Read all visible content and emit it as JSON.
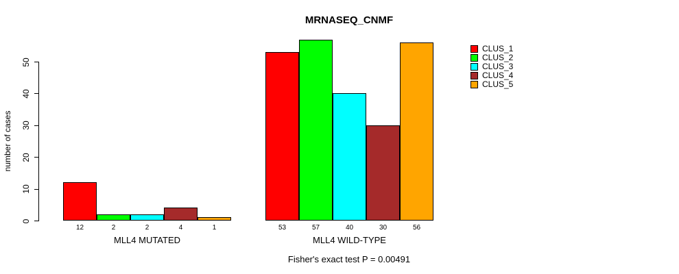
{
  "title": "MRNASEQ_CNMF",
  "footer": "Fisher's exact test P = 0.00491",
  "chart_data": {
    "type": "bar",
    "title": "MRNASEQ_CNMF",
    "xlabel": "",
    "ylabel": "number of cases",
    "ylim": [
      0,
      50
    ],
    "yticks": [
      0,
      10,
      20,
      30,
      40,
      50
    ],
    "grid": false,
    "legend_position": "right",
    "categories": [
      "MLL4 MUTATED",
      "MLL4 WILD-TYPE"
    ],
    "series": [
      {
        "name": "CLUS_1",
        "color": "#FF0000",
        "values": [
          12,
          53
        ]
      },
      {
        "name": "CLUS_2",
        "color": "#00FF00",
        "values": [
          2,
          57
        ]
      },
      {
        "name": "CLUS_3",
        "color": "#00FFFF",
        "values": [
          2,
          40
        ]
      },
      {
        "name": "CLUS_4",
        "color": "#A52A2A",
        "values": [
          4,
          30
        ]
      },
      {
        "name": "CLUS_5",
        "color": "#FFA500",
        "values": [
          1,
          56
        ]
      }
    ],
    "bar_value_labels": [
      [
        12,
        2,
        2,
        4,
        1
      ],
      [
        53,
        57,
        40,
        30,
        56
      ]
    ],
    "annotation": "Fisher's exact test P = 0.00491"
  },
  "legend": {
    "items": [
      {
        "label": "CLUS_1",
        "color": "#FF0000"
      },
      {
        "label": "CLUS_2",
        "color": "#00FF00"
      },
      {
        "label": "CLUS_3",
        "color": "#00FFFF"
      },
      {
        "label": "CLUS_4",
        "color": "#A52A2A"
      },
      {
        "label": "CLUS_5",
        "color": "#FFA500"
      }
    ]
  }
}
